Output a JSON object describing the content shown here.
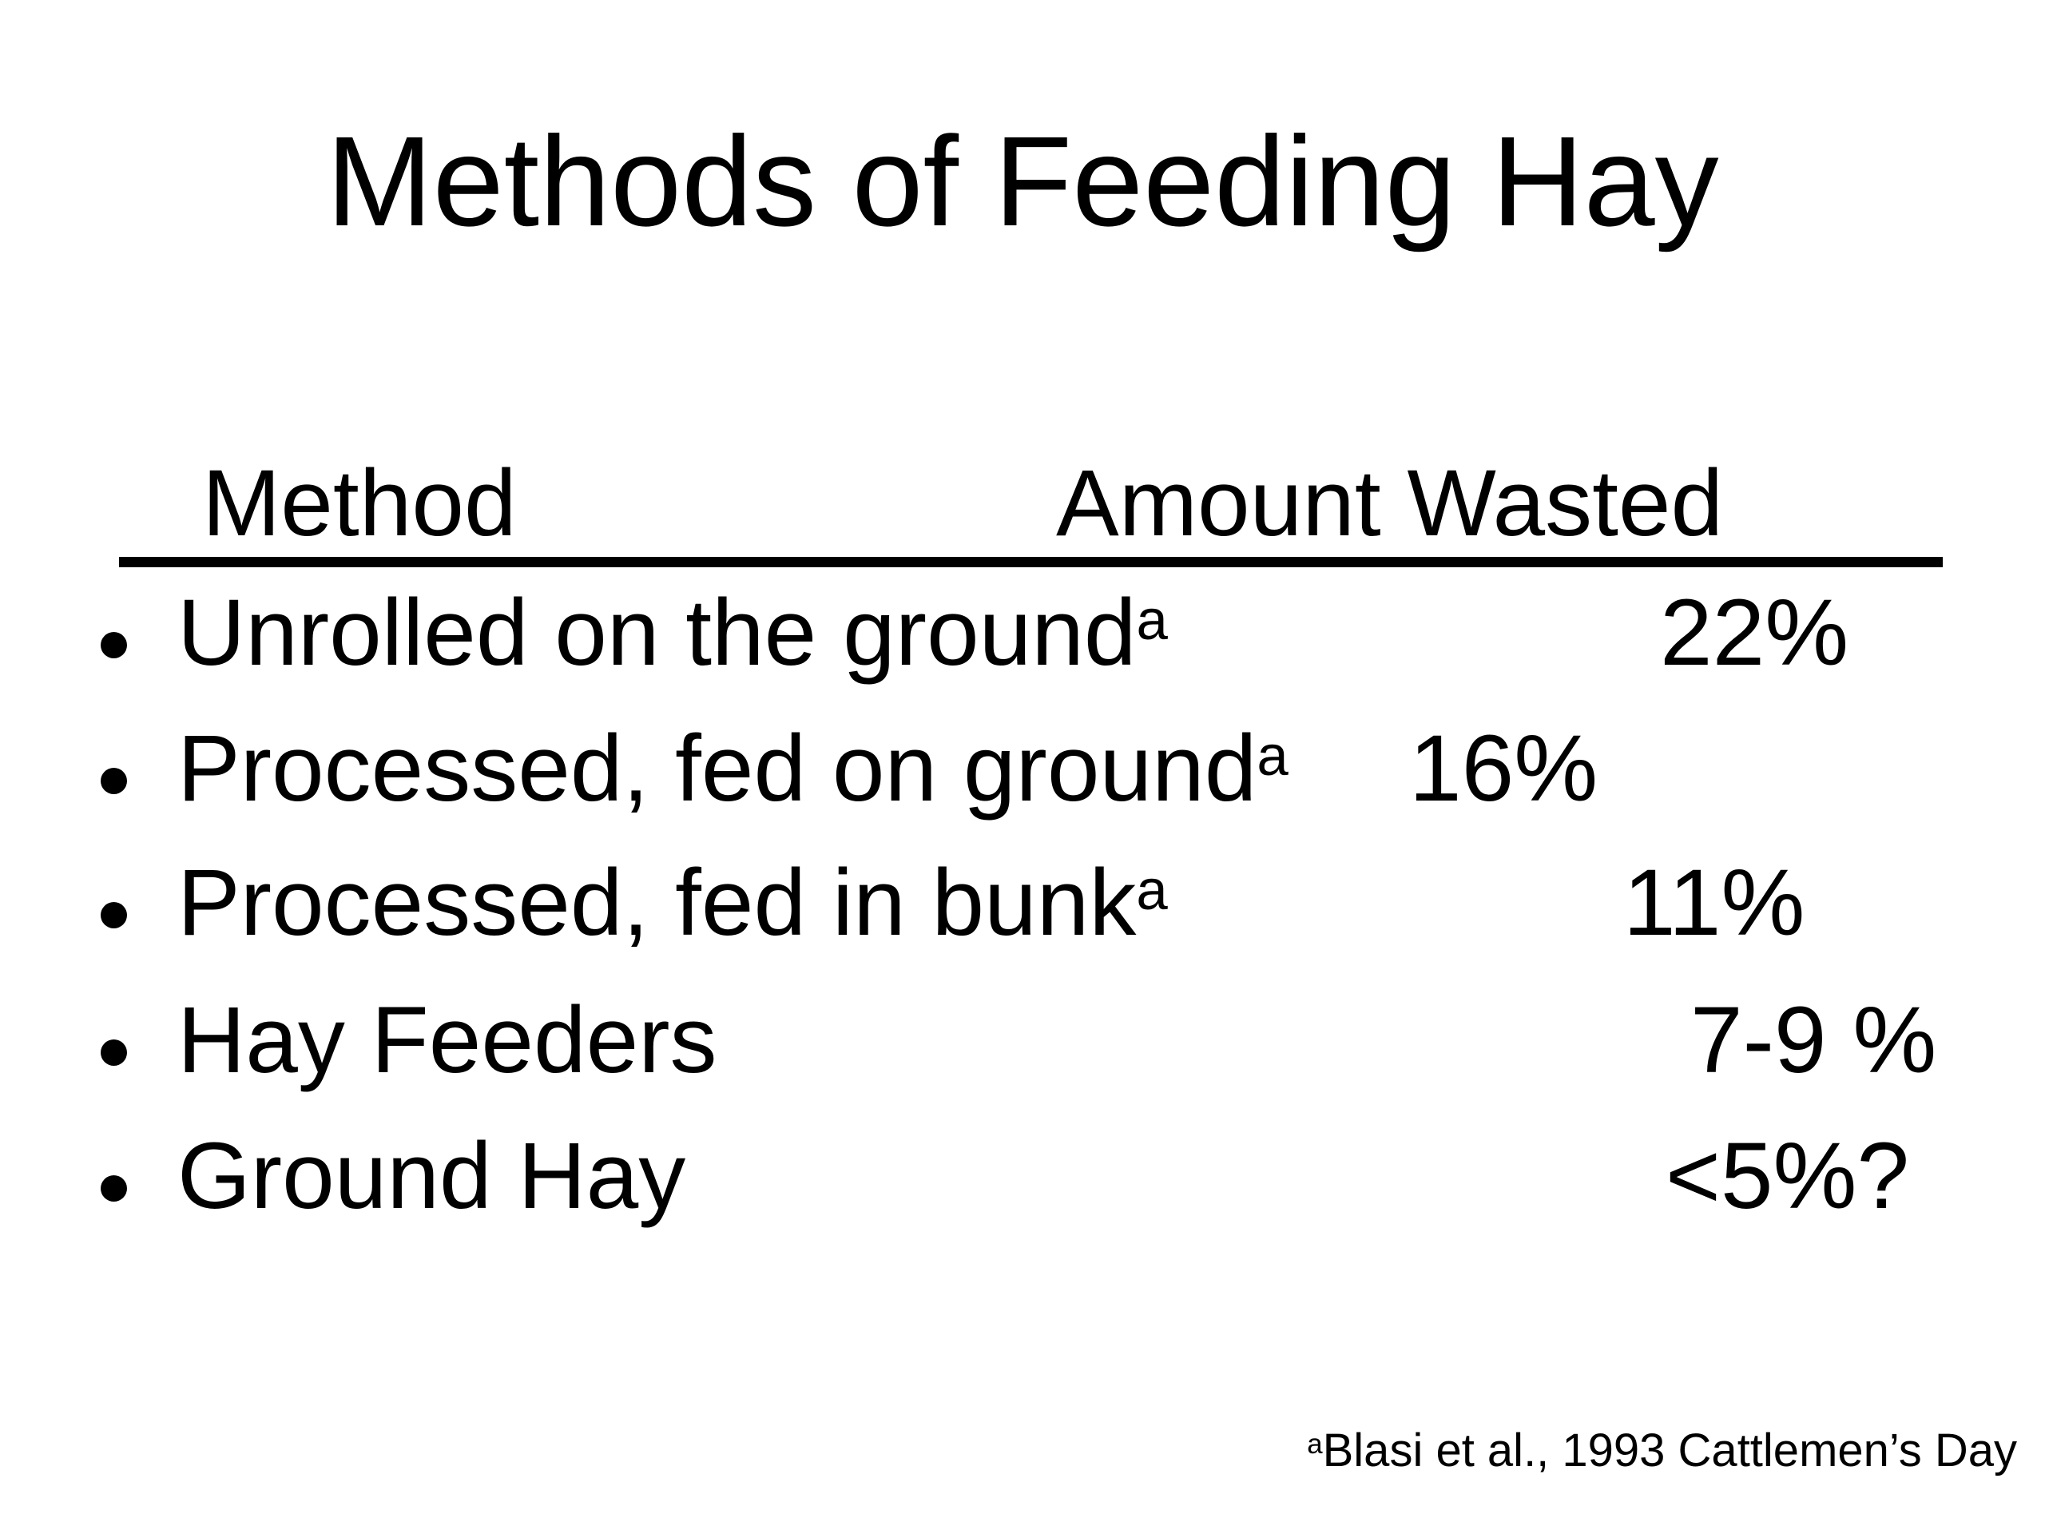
{
  "slide": {
    "title": "Methods of Feeding Hay",
    "table": {
      "headers": {
        "method": "Method",
        "amount": "Amount Wasted"
      },
      "rows": [
        {
          "method": "Unrolled on the ground",
          "superscript": "a",
          "value": "22%"
        },
        {
          "method": "Processed, fed on ground",
          "superscript": "a",
          "value": "16%"
        },
        {
          "method": "Processed, fed in bunk",
          "superscript": "a",
          "value": "11%"
        },
        {
          "method": "Hay Feeders",
          "superscript": "",
          "value": "7-9 %"
        },
        {
          "method": "Ground Hay",
          "superscript": "",
          "value": "<5%?"
        }
      ]
    },
    "footnote": {
      "superscript": "a",
      "text": "Blasi et al., 1993 Cattlemen’s Day"
    },
    "colors": {
      "background": "#ffffff",
      "text": "#000000",
      "rule": "#000000"
    }
  }
}
